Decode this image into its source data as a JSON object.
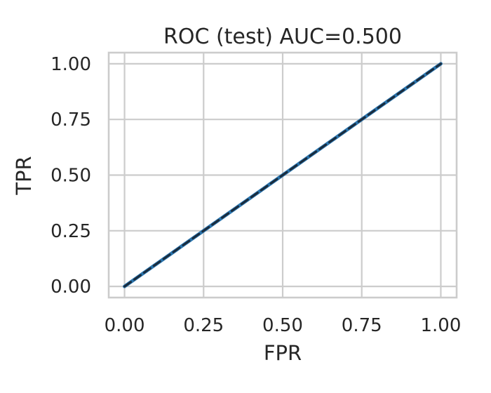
{
  "chart_data": {
    "type": "line",
    "title": "ROC (test) AUC=0.500",
    "xlabel": "FPR",
    "ylabel": "TPR",
    "xlim": [
      -0.05,
      1.05
    ],
    "ylim": [
      -0.05,
      1.05
    ],
    "xticks": [
      0.0,
      0.25,
      0.5,
      0.75,
      1.0
    ],
    "yticks": [
      0.0,
      0.25,
      0.5,
      0.75,
      1.0
    ],
    "xtick_labels": [
      "0.00",
      "0.25",
      "0.50",
      "0.75",
      "1.00"
    ],
    "ytick_labels": [
      "0.00",
      "0.25",
      "0.50",
      "0.75",
      "1.00"
    ],
    "grid": true,
    "series": [
      {
        "x": [
          0.0,
          1.0
        ],
        "y": [
          0.0,
          1.0
        ],
        "color": "#2a74ad",
        "style": "solid"
      },
      {
        "x": [
          0.0,
          1.0
        ],
        "y": [
          0.0,
          1.0
        ],
        "color": "#1a2b3c",
        "style": "dashed"
      }
    ]
  }
}
